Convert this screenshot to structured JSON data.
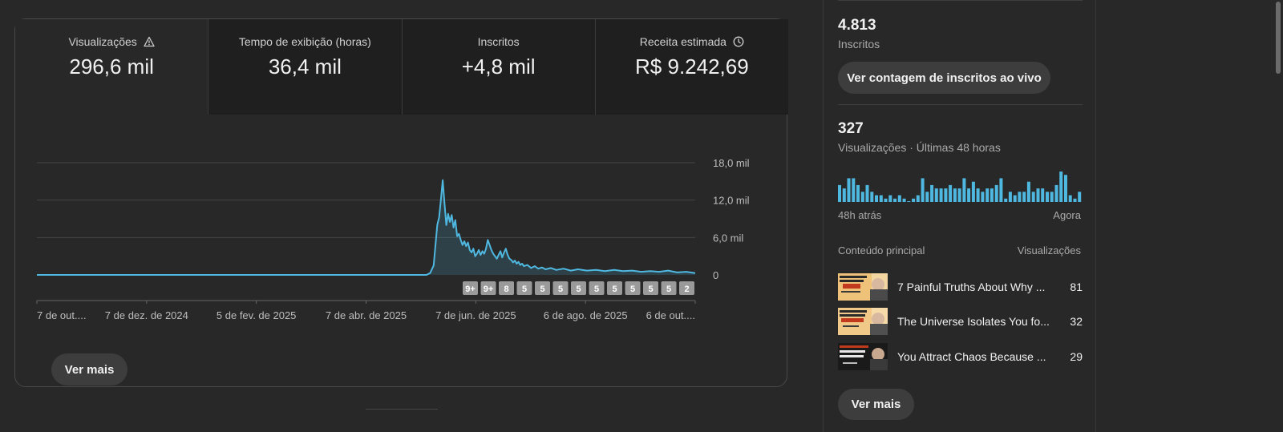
{
  "tabs": [
    {
      "label": "Visualizações",
      "value": "296,6 mil",
      "icon": "warning-icon"
    },
    {
      "label": "Tempo de exibição (horas)",
      "value": "36,4 mil"
    },
    {
      "label": "Inscritos",
      "value": "+4,8 mil"
    },
    {
      "label": "Receita estimada",
      "value": "R$ 9.242,69",
      "icon": "clock-icon"
    }
  ],
  "chart_data": {
    "type": "line",
    "xlabel": "",
    "ylabel": "",
    "ylim": [
      0,
      18000
    ],
    "y_ticks": [
      {
        "value": 0,
        "label": "0"
      },
      {
        "value": 6000,
        "label": "6,0 mil"
      },
      {
        "value": 12000,
        "label": "12,0 mil"
      },
      {
        "value": 18000,
        "label": "18,0 mil"
      }
    ],
    "x_ticks": [
      "7 de out....",
      "7 de dez. de 2024",
      "5 de fev. de 2025",
      "7 de abr. de 2025",
      "7 de jun. de 2025",
      "6 de ago. de 2025",
      "6 de out...."
    ],
    "x_range_days": [
      0,
      365
    ],
    "grid": true,
    "series": [
      {
        "color": "#4fb8e0",
        "points": [
          [
            0,
            0
          ],
          [
            60,
            0
          ],
          [
            120,
            0
          ],
          [
            180,
            0
          ],
          [
            216,
            0
          ],
          [
            218,
            300
          ],
          [
            220,
            1500
          ],
          [
            222,
            8000
          ],
          [
            223,
            9200
          ],
          [
            224,
            12000
          ],
          [
            225,
            15200
          ],
          [
            226,
            11500
          ],
          [
            227,
            8000
          ],
          [
            228,
            9800
          ],
          [
            229,
            8500
          ],
          [
            230,
            9600
          ],
          [
            231,
            7600
          ],
          [
            232,
            8800
          ],
          [
            233,
            6200
          ],
          [
            234,
            6600
          ],
          [
            235,
            5600
          ],
          [
            236,
            4800
          ],
          [
            237,
            5400
          ],
          [
            238,
            4600
          ],
          [
            239,
            5200
          ],
          [
            240,
            4000
          ],
          [
            241,
            3600
          ],
          [
            242,
            4200
          ],
          [
            243,
            3000
          ],
          [
            244,
            3400
          ],
          [
            245,
            4000
          ],
          [
            246,
            3200
          ],
          [
            247,
            3800
          ],
          [
            248,
            3400
          ],
          [
            249,
            4200
          ],
          [
            250,
            5600
          ],
          [
            251,
            4800
          ],
          [
            252,
            4000
          ],
          [
            253,
            3400
          ],
          [
            254,
            3000
          ],
          [
            255,
            2600
          ],
          [
            256,
            3200
          ],
          [
            257,
            3800
          ],
          [
            258,
            2800
          ],
          [
            259,
            3600
          ],
          [
            260,
            4200
          ],
          [
            261,
            3200
          ],
          [
            262,
            2600
          ],
          [
            263,
            2400
          ],
          [
            264,
            2000
          ],
          [
            265,
            2300
          ],
          [
            266,
            1800
          ],
          [
            267,
            2100
          ],
          [
            268,
            1600
          ],
          [
            269,
            1800
          ],
          [
            270,
            1400
          ],
          [
            272,
            1600
          ],
          [
            274,
            1100
          ],
          [
            276,
            1400
          ],
          [
            278,
            1000
          ],
          [
            280,
            1200
          ],
          [
            282,
            900
          ],
          [
            285,
            1100
          ],
          [
            288,
            800
          ],
          [
            292,
            1000
          ],
          [
            296,
            700
          ],
          [
            300,
            900
          ],
          [
            305,
            700
          ],
          [
            310,
            800
          ],
          [
            315,
            600
          ],
          [
            320,
            800
          ],
          [
            325,
            600
          ],
          [
            330,
            700
          ],
          [
            335,
            500
          ],
          [
            340,
            600
          ],
          [
            345,
            500
          ],
          [
            350,
            700
          ],
          [
            355,
            400
          ],
          [
            360,
            500
          ],
          [
            365,
            300
          ]
        ]
      }
    ],
    "markers": [
      "9+",
      "9+",
      "8",
      "5",
      "5",
      "5",
      "5",
      "5",
      "5",
      "5",
      "5",
      "5",
      "2"
    ]
  },
  "more_label": "Ver mais",
  "right": {
    "subs_value": "4.813",
    "subs_label": "Inscritos",
    "live_button": "Ver contagem de inscritos ao vivo",
    "views48_value": "327",
    "views48_label": "Visualizações · Últimas 48 horas",
    "mini_chart": {
      "type": "bar",
      "color": "#4fb8e0",
      "values": [
        5,
        4,
        7,
        7,
        5,
        3,
        5,
        3,
        2,
        2,
        1,
        2,
        1,
        2,
        1,
        0,
        1,
        2,
        7,
        3,
        5,
        4,
        4,
        4,
        5,
        4,
        4,
        7,
        4,
        6,
        4,
        3,
        4,
        4,
        5,
        7,
        1,
        3,
        2,
        3,
        3,
        6,
        3,
        4,
        4,
        3,
        3,
        5,
        9,
        8,
        2,
        1,
        3
      ]
    },
    "mini_left_label": "48h atrás",
    "mini_right_label": "Agora",
    "content_header": "Conteúdo principal",
    "content_views_header": "Visualizações",
    "content": [
      {
        "title": "7 Painful Truths About Why ...",
        "views": "81"
      },
      {
        "title": "The Universe Isolates You fo...",
        "views": "32"
      },
      {
        "title": "You Attract Chaos Because ...",
        "views": "29"
      }
    ],
    "more_label": "Ver mais"
  }
}
